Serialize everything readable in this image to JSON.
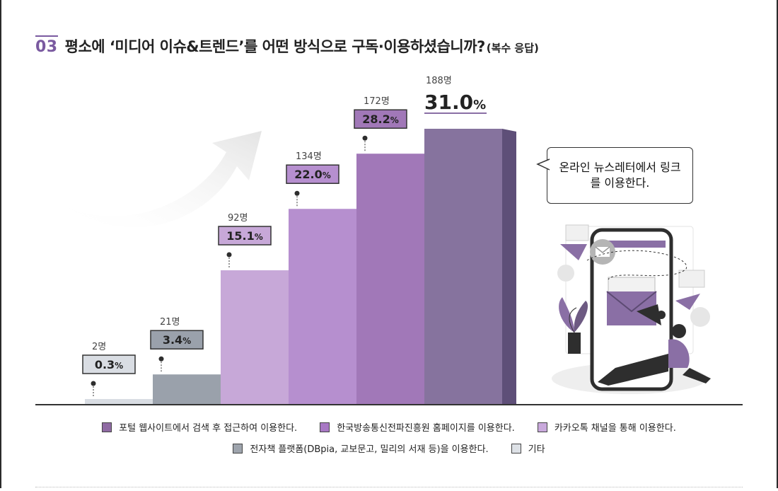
{
  "title": {
    "number": "03",
    "text": "평소에 ‘미디어 이슈&트렌드’를 어떤 방식으로 구독·이용하셨습니까?",
    "note": "(복수 응답)"
  },
  "callout": "온라인 뉴스레터에서 링크를 이용한다.",
  "chart_data": {
    "type": "bar",
    "title": "평소에 ‘미디어 이슈&트렌드’를 어떤 방식으로 구독·이용하셨습니까?(복수 응답)",
    "categories": [
      "기타",
      "전자책 플랫폼(DBpia, 교보문고, 밀리의 서재 등)을 이용한다.",
      "카카오톡 채널을 통해 이용한다.",
      "한국방송통신전파진흥원 홈페이지를 이용한다.",
      "포털 웹사이트에서 검색 후 접근하여 이용한다.",
      "온라인 뉴스레터에서 링크를 이용한다."
    ],
    "percent": [
      0.3,
      3.4,
      15.1,
      22.0,
      28.2,
      31.0
    ],
    "counts": [
      2,
      21,
      92,
      134,
      172,
      188
    ],
    "count_labels": [
      "2명",
      "21명",
      "92명",
      "134명",
      "172명",
      "188명"
    ],
    "percent_labels": [
      "0.3",
      "3.4",
      "15.1",
      "22.0",
      "28.2",
      "31.0"
    ],
    "percent_unit": "%",
    "colors": [
      "#d9dde3",
      "#9aa1ab",
      "#c7a8d8",
      "#b68fcf",
      "#a178b8",
      "#86739e"
    ],
    "side_colors": [
      "#b9bec6",
      "#7b828c",
      "#a98cc0",
      "#9a63c6",
      "#8a5aa8",
      "#5e4f78"
    ],
    "legend": [
      {
        "label": "포털 웹사이트에서 검색 후 접근하여 이용한다.",
        "color": "#8f6aa3"
      },
      {
        "label": "한국방송통신전파진흥원 홈페이지를 이용한다.",
        "color": "#a878c4"
      },
      {
        "label": "카카오톡 채널을 통해 이용한다.",
        "color": "#c9a9dc"
      },
      {
        "label": "전자책 플랫폼(DBpia, 교보문고, 밀리의 서재 등)을 이용한다.",
        "color": "#9ea4ad"
      },
      {
        "label": "기타",
        "color": "#dde1e6"
      }
    ]
  }
}
